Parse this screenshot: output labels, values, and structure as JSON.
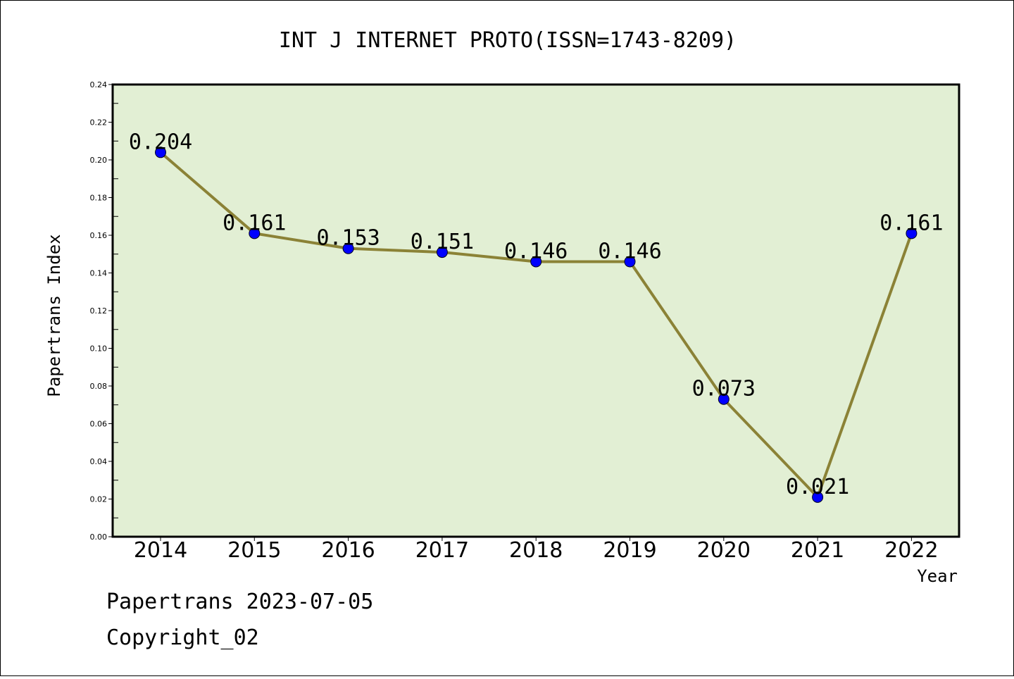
{
  "chart_data": {
    "type": "line",
    "title": "INT J INTERNET PROTO(ISSN=1743-8209)",
    "xlabel": "Year",
    "ylabel": "Papertrans Index",
    "categories": [
      "2014",
      "2015",
      "2016",
      "2017",
      "2018",
      "2019",
      "2020",
      "2021",
      "2022"
    ],
    "series": [
      {
        "values": [
          0.204,
          0.161,
          0.153,
          0.151,
          0.146,
          0.146,
          0.073,
          0.021,
          0.161
        ],
        "data_labels": [
          "0.204",
          "0.161",
          "0.153",
          "0.151",
          "0.146",
          "0.146",
          "0.073",
          "0.021",
          "0.161"
        ]
      }
    ],
    "ylim": [
      0,
      0.24
    ],
    "yticks": [
      "0.00",
      "0.02",
      "0.04",
      "0.06",
      "0.08",
      "0.10",
      "0.12",
      "0.14",
      "0.16",
      "0.18",
      "0.20",
      "0.22",
      "0.24"
    ],
    "grid": false,
    "legend": "none",
    "colors": {
      "plot_background": "#e2efd4",
      "line": "#8b8236",
      "marker": "#0000ff"
    }
  },
  "footer": {
    "line1": "Papertrans 2023-07-05",
    "line2": "Copyright_02"
  }
}
